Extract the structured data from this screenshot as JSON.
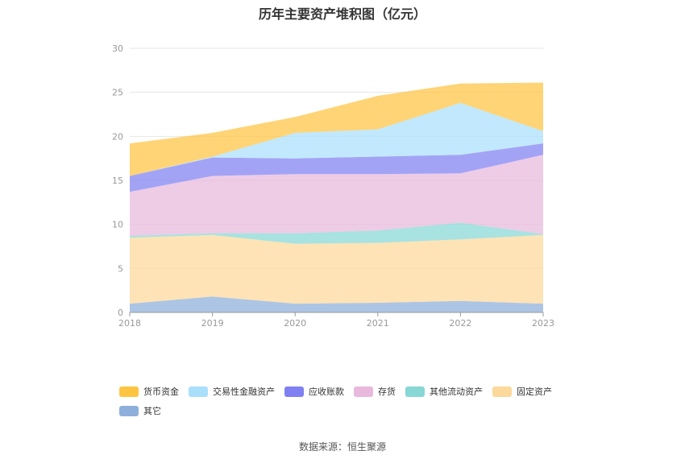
{
  "chart_data": {
    "type": "area",
    "stacked": true,
    "title": "历年主要资产堆积图（亿元）",
    "categories": [
      "2018",
      "2019",
      "2020",
      "2021",
      "2022",
      "2023"
    ],
    "ylim": [
      0,
      30
    ],
    "yticks": [
      "0",
      "5",
      "10",
      "15",
      "20",
      "25",
      "30"
    ],
    "grid": true,
    "legend_position": "bottom",
    "series": [
      {
        "name": "其它",
        "color": "#8EAFDB",
        "values": [
          1.0,
          1.8,
          1.0,
          1.1,
          1.3,
          1.0
        ]
      },
      {
        "name": "固定资产",
        "color": "#FCD89A",
        "values": [
          7.5,
          7.0,
          6.8,
          6.8,
          7.0,
          7.8
        ]
      },
      {
        "name": "其他流动资产",
        "color": "#87D7D5",
        "values": [
          0.2,
          0.2,
          1.2,
          1.4,
          1.9,
          0.1
        ]
      },
      {
        "name": "存货",
        "color": "#E8B9DC",
        "values": [
          5.0,
          6.5,
          6.7,
          6.4,
          5.6,
          9.0
        ]
      },
      {
        "name": "应收账款",
        "color": "#7F80F2",
        "values": [
          1.8,
          2.1,
          1.8,
          2.0,
          2.1,
          1.3
        ]
      },
      {
        "name": "交易性金融资产",
        "color": "#A9DFFB",
        "values": [
          0.0,
          0.1,
          2.9,
          3.1,
          5.9,
          1.4
        ]
      },
      {
        "name": "货币资金",
        "color": "#FDC441",
        "values": [
          3.7,
          2.7,
          1.8,
          3.8,
          2.2,
          5.5
        ]
      }
    ],
    "legend_order": [
      "货币资金",
      "交易性金融资产",
      "应收账款",
      "存货",
      "其他流动资产",
      "固定资产",
      "其它"
    ]
  },
  "source_text": "数据来源：恒生聚源"
}
